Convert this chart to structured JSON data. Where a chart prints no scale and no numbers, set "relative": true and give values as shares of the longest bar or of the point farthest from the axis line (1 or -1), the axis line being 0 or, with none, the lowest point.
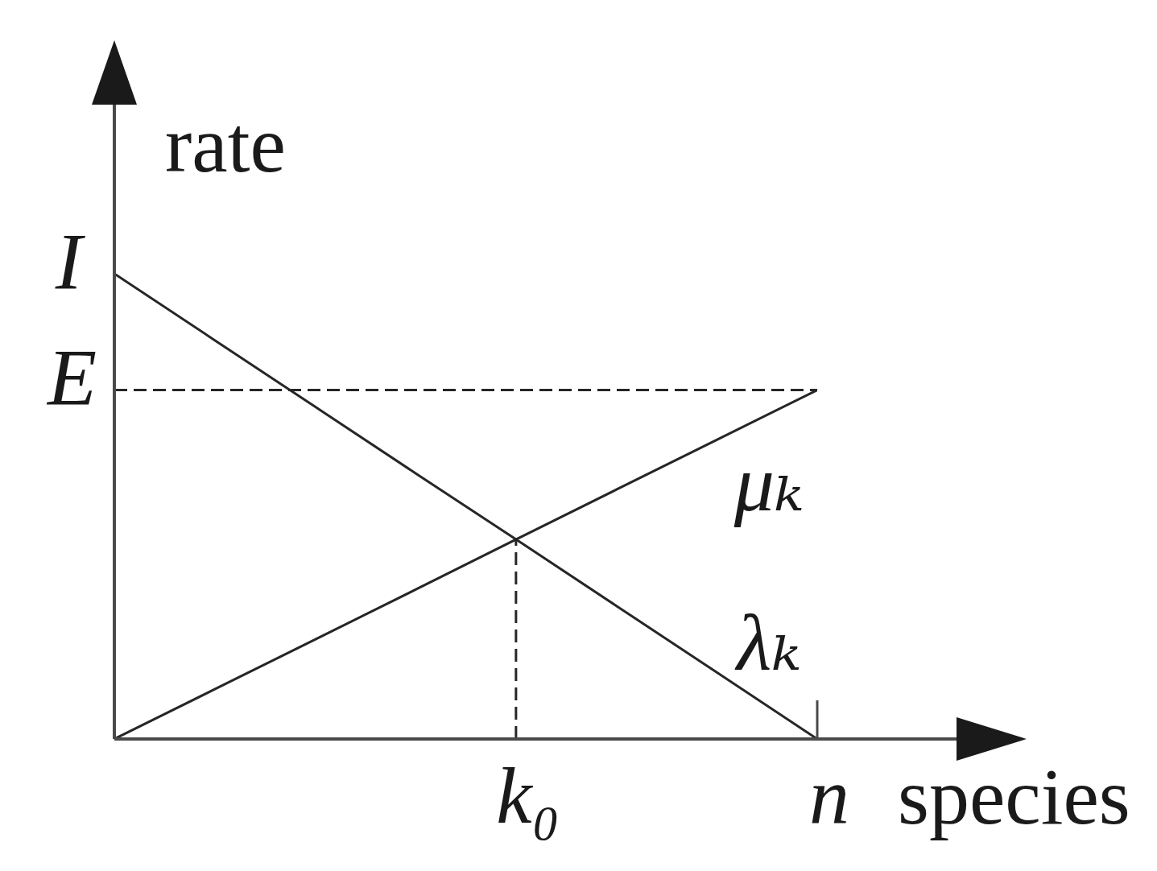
{
  "chart_data": {
    "type": "line",
    "xlabel": "species",
    "ylabel": "rate",
    "relative": true,
    "categories": [
      null,
      null,
      null,
      null,
      "k₀",
      null,
      null,
      "n"
    ],
    "series": [
      {
        "name": "λₖ",
        "color": "#262626",
        "values": [
          1,
          0.857,
          0.714,
          0.571,
          0.429,
          0.286,
          0.143,
          0
        ]
      },
      {
        "name": "μₖ",
        "color": "#262626",
        "values": [
          0,
          0.107,
          0.214,
          0.321,
          0.429,
          0.536,
          0.643,
          0.75
        ]
      }
    ],
    "ref_lines": [
      {
        "axis": "y",
        "value": 0.75,
        "label": "E",
        "line_style": "dashed",
        "color": "#262626"
      },
      {
        "axis": "x",
        "value": "k₀",
        "line_style": "dashed",
        "color": "#262626"
      }
    ],
    "annotations": [
      "I"
    ],
    "marker": "none"
  }
}
